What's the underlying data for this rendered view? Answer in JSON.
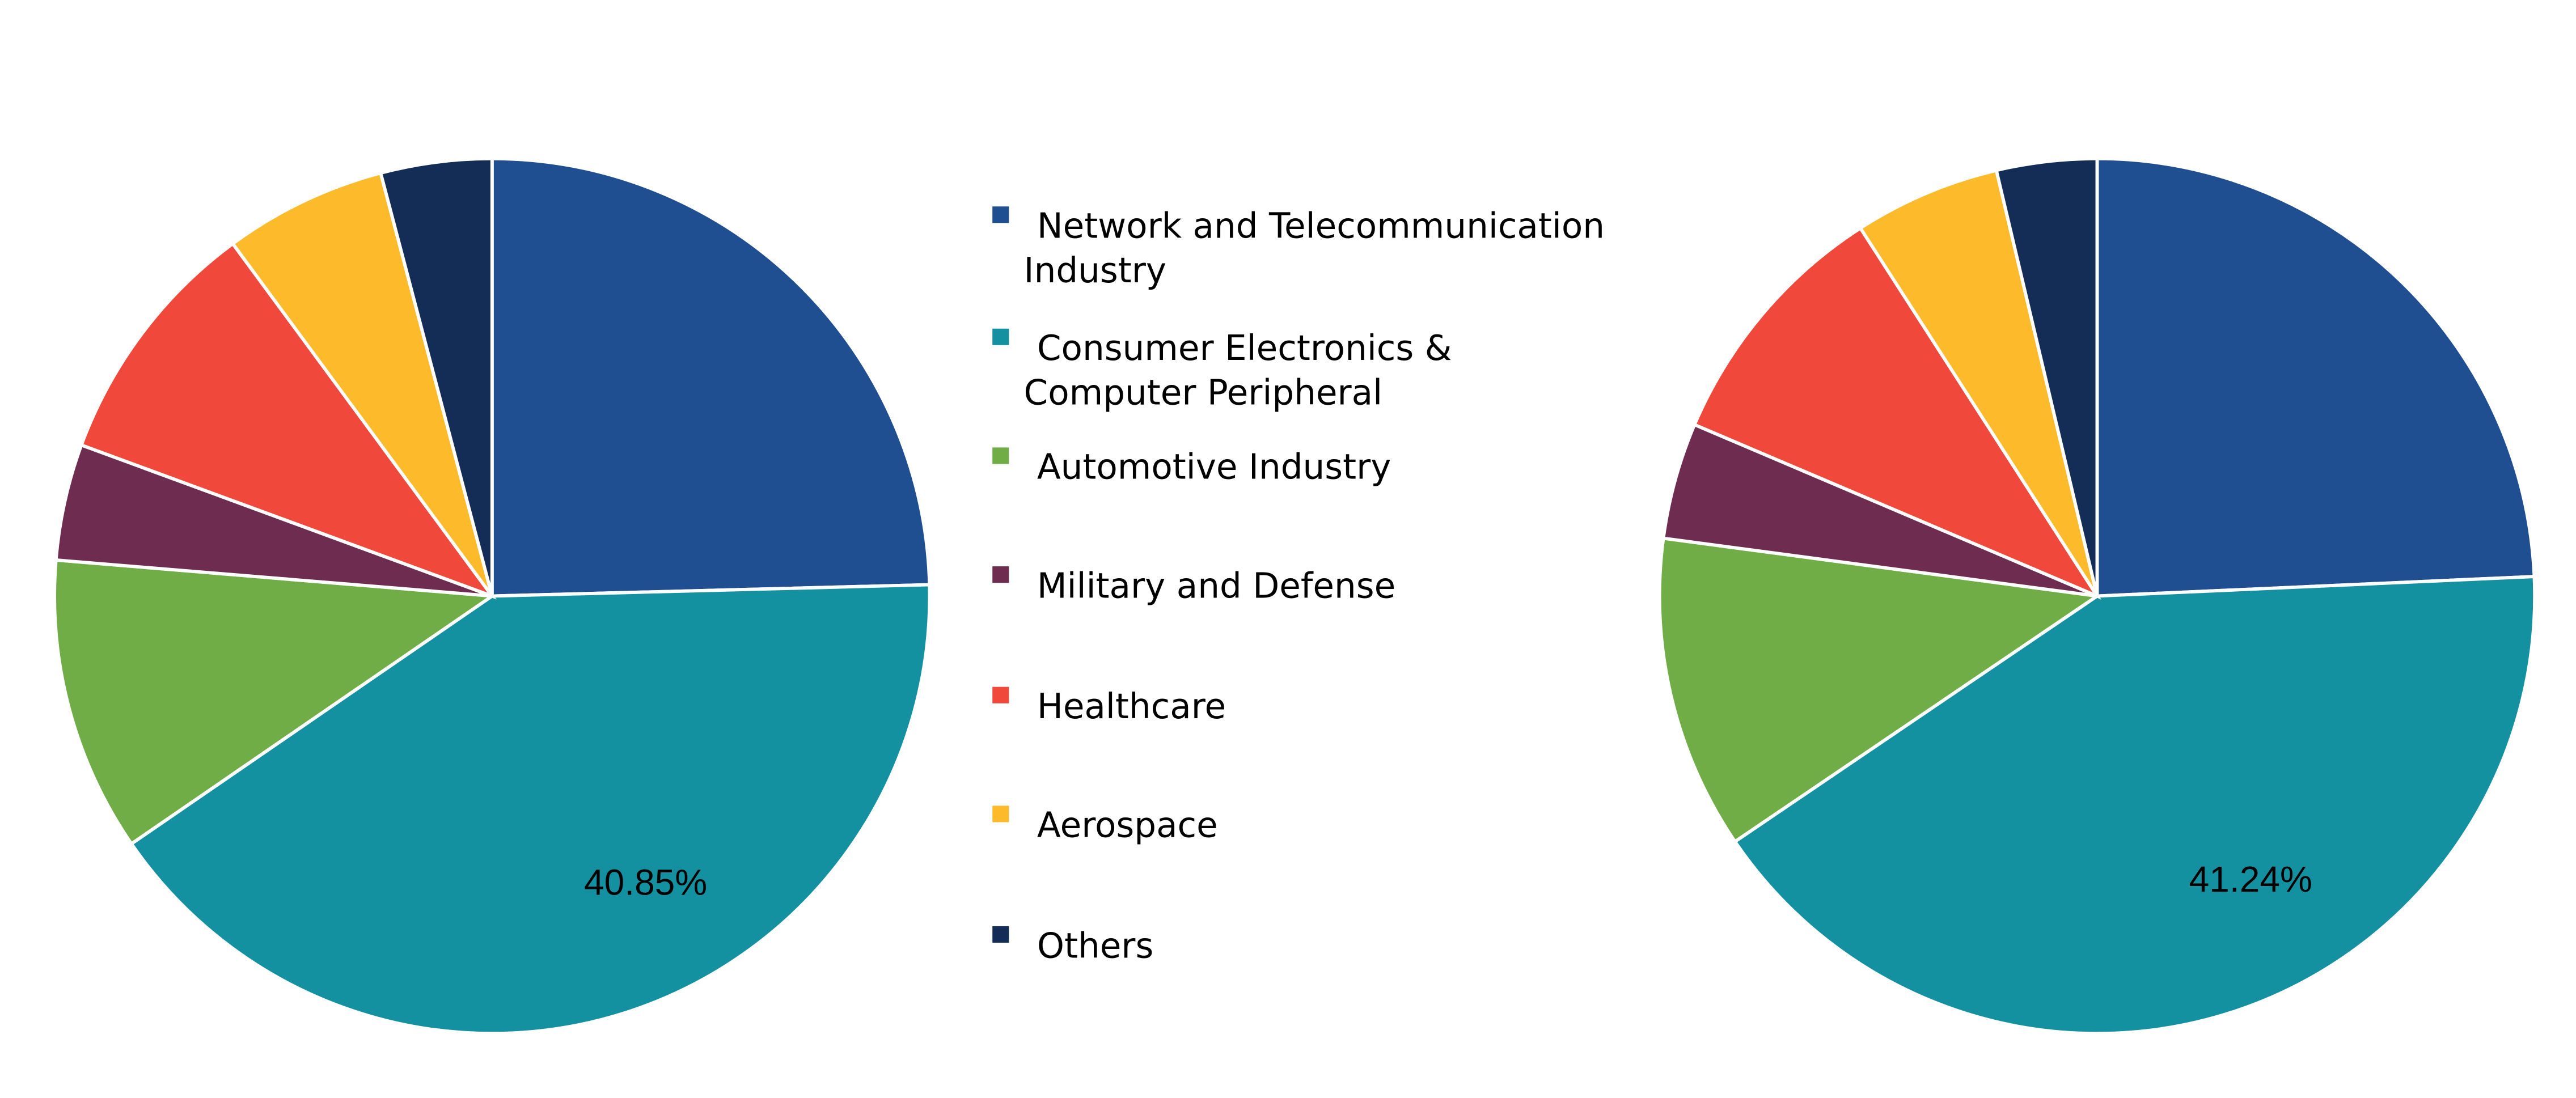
{
  "chart_data": [
    {
      "type": "pie",
      "categories": [
        "Network and Telecommunication Industry",
        "Consumer Electronics & Computer Peripheral",
        "Automotive Industry",
        "Military and Defense",
        "Healthcare",
        "Aerospace",
        "Others"
      ],
      "values": [
        24.6,
        40.85,
        10.9,
        4.3,
        9.3,
        6.0,
        4.1
      ],
      "data_labels": {
        "1": "40.85%"
      },
      "start_angle": "12 o'clock",
      "direction": "clockwise"
    },
    {
      "type": "pie",
      "categories": [
        "Network and Telecommunication Industry",
        "Consumer Electronics & Computer Peripheral",
        "Automotive Industry",
        "Military and Defense",
        "Healthcare",
        "Aerospace",
        "Others"
      ],
      "values": [
        24.3,
        41.24,
        11.6,
        4.3,
        9.5,
        5.4,
        3.7
      ],
      "data_labels": {
        "1": "41.24%"
      },
      "start_angle": "12 o'clock",
      "direction": "clockwise"
    }
  ],
  "legend": {
    "placement": "center",
    "items": [
      {
        "lines": [
          "Network and Telecommunication",
          "Industry"
        ],
        "color": "#1F4E91"
      },
      {
        "lines": [
          "Consumer Electronics &",
          "Computer Peripheral"
        ],
        "color": "#1391A0"
      },
      {
        "lines": [
          "Automotive Industry"
        ],
        "color": "#70AD47"
      },
      {
        "lines": [
          "Military and Defense"
        ],
        "color": "#6E2C50"
      },
      {
        "lines": [
          "Healthcare"
        ],
        "color": "#F0483A"
      },
      {
        "lines": [
          "Aerospace"
        ],
        "color": "#FDBB2C"
      },
      {
        "lines": [
          "Others"
        ],
        "color": "#142D57"
      }
    ]
  }
}
